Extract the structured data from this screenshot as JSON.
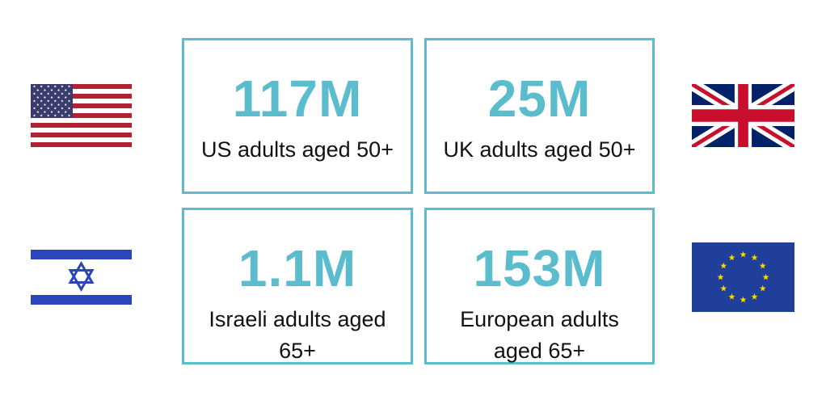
{
  "colors": {
    "accent": "#5bbccd",
    "border": "#5bbccd",
    "text": "#111111"
  },
  "stats": [
    {
      "value": "117M",
      "label": "US adults aged 50+",
      "flag": "us-flag-icon"
    },
    {
      "value": "25M",
      "label": "UK adults aged 50+",
      "flag": "uk-flag-icon"
    },
    {
      "value": "1.1M",
      "label_lines": [
        "Israeli adults aged",
        "65+"
      ],
      "flag": "israel-flag-icon"
    },
    {
      "value": "153M",
      "label_lines": [
        "European adults",
        "aged 65+"
      ],
      "flag": "eu-flag-icon"
    }
  ]
}
